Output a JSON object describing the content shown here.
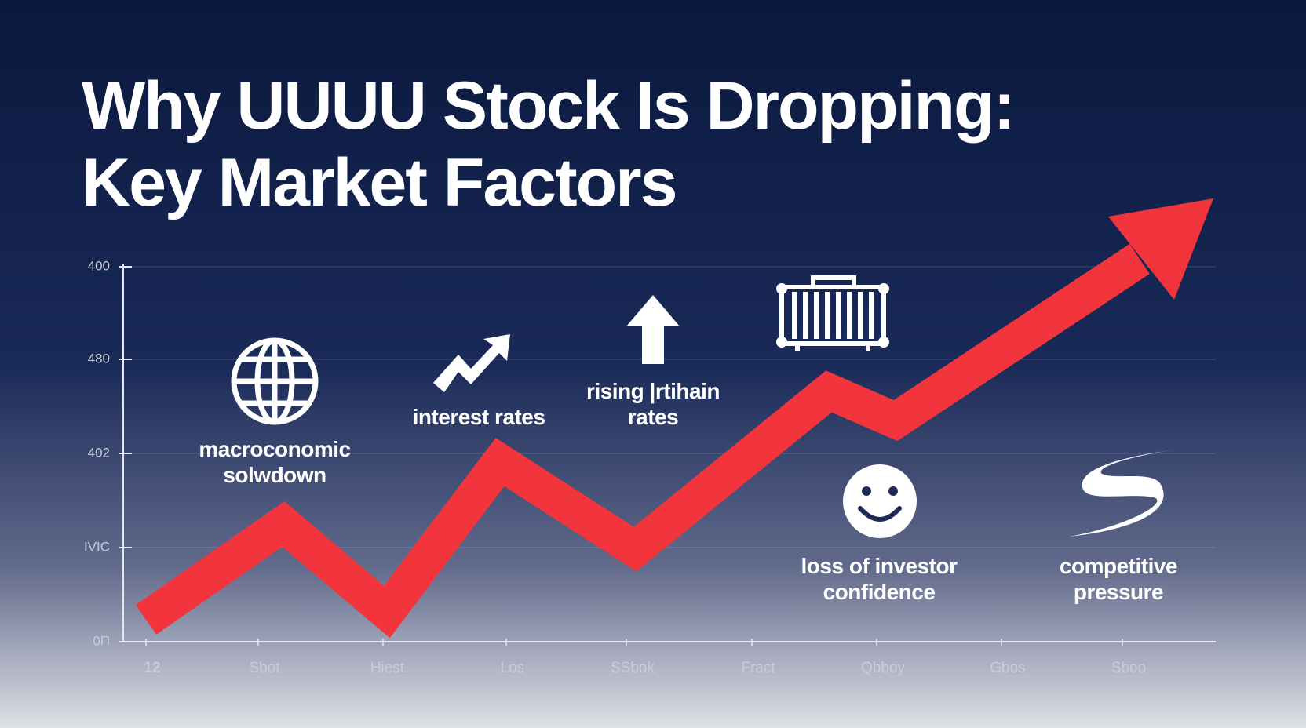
{
  "title_lines": [
    "Why UUUU Stock Is Dropping:",
    "Key Market Factors"
  ],
  "y_labels": [
    "400",
    "480",
    "402",
    "IVIC",
    "0П"
  ],
  "x_labels": [
    "12",
    "Sbot",
    "Hiest.",
    "Los",
    "SSbok",
    "Fract",
    "Qbboy",
    "Gbos",
    "Sboo"
  ],
  "factors": [
    {
      "lines": [
        "macroconomic",
        "solwdown"
      ]
    },
    {
      "lines": [
        "interest rates"
      ]
    },
    {
      "lines": [
        "rising |rtihain",
        "rates"
      ]
    },
    {
      "lines": [
        "loss of investor",
        "confidence"
      ]
    },
    {
      "lines": [
        "competitive",
        "pressure"
      ]
    }
  ]
}
